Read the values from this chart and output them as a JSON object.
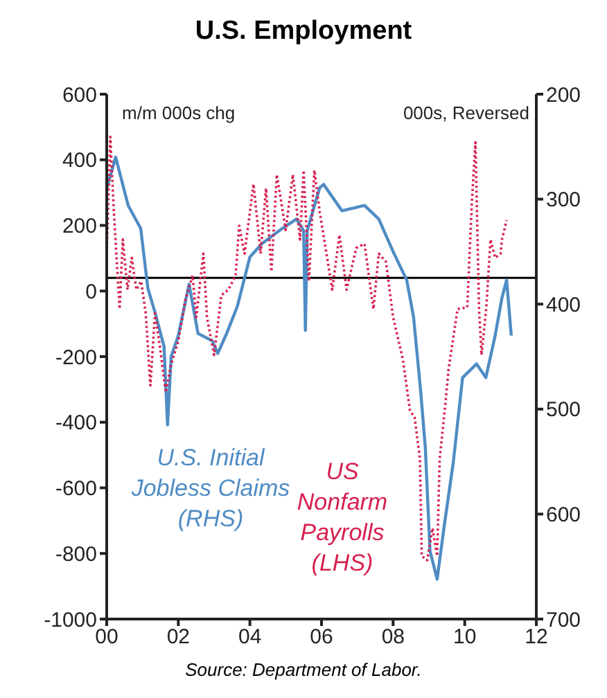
{
  "chart_data": {
    "type": "line",
    "title": "U.S. Employment",
    "ylabel": "m/m 000s chg",
    "y2label": "000s, Reversed",
    "annotations": [
      "Source: Department of Labor."
    ],
    "xlim": [
      2000,
      2012
    ],
    "xticks": [
      {
        "value": 2000,
        "label": "00"
      },
      {
        "value": 2002,
        "label": "02"
      },
      {
        "value": 2004,
        "label": "04"
      },
      {
        "value": 2006,
        "label": "06"
      },
      {
        "value": 2008,
        "label": "08"
      },
      {
        "value": 2010,
        "label": "10"
      },
      {
        "value": 2012,
        "label": "12"
      }
    ],
    "ylim": [
      -1000,
      600
    ],
    "yticks": [
      -1000,
      -800,
      -600,
      -400,
      -200,
      0,
      200,
      400,
      600
    ],
    "y2lim": [
      700,
      200
    ],
    "y2ticks": [
      200,
      300,
      400,
      500,
      600,
      700
    ],
    "ref_lines": [
      {
        "axis": "y2",
        "value": 375,
        "color": "#000000"
      }
    ],
    "grid": false,
    "legend": false,
    "series": [
      {
        "name": "U.S. Initial Jobless Claims (RHS)",
        "color": "#4f8cc4",
        "axis": "y2",
        "line_style": "solid",
        "x": [
          2000.0,
          2000.25,
          2000.6,
          2000.95,
          2001.15,
          2001.35,
          2001.6,
          2001.7,
          2001.8,
          2002.0,
          2002.3,
          2002.55,
          2002.95,
          2003.1,
          2003.35,
          2003.65,
          2004.0,
          2004.35,
          2004.9,
          2005.3,
          2005.5,
          2005.55,
          2005.6,
          2005.95,
          2006.06,
          2006.57,
          2007.2,
          2007.6,
          2008.0,
          2008.38,
          2008.57,
          2008.77,
          2008.9,
          2009.03,
          2009.23,
          2009.42,
          2009.68,
          2009.94,
          2010.33,
          2010.59,
          2010.85,
          2011.04,
          2011.17,
          2011.3
        ],
        "values": [
          290,
          260,
          306,
          328,
          385,
          408,
          440,
          515,
          450,
          430,
          381,
          428,
          435,
          447,
          428,
          402,
          355,
          342,
          328,
          319,
          330,
          425,
          330,
          289,
          286,
          311,
          306,
          319,
          350,
          377,
          412,
          483,
          537,
          635,
          662,
          613,
          551,
          470,
          457,
          470,
          430,
          394,
          377,
          430
        ]
      },
      {
        "name": "US Nonfarm Payrolls (LHS)",
        "color": "#d6204f",
        "line_style": "dotted",
        "x": [
          2000.0,
          2000.1,
          2000.2,
          2000.36,
          2000.45,
          2000.58,
          2000.7,
          2000.83,
          2000.96,
          2001.09,
          2001.22,
          2001.35,
          2001.48,
          2001.65,
          2001.8,
          2002.0,
          2002.2,
          2002.4,
          2002.5,
          2002.7,
          2002.8,
          2003.0,
          2003.2,
          2003.4,
          2003.6,
          2003.7,
          2003.85,
          2004.1,
          2004.3,
          2004.45,
          2004.6,
          2004.75,
          2005.0,
          2005.2,
          2005.4,
          2005.5,
          2005.65,
          2005.8,
          2005.95,
          2006.3,
          2006.5,
          2006.7,
          2006.97,
          2007.2,
          2007.45,
          2007.6,
          2007.8,
          2008.0,
          2008.27,
          2008.47,
          2008.6,
          2008.75,
          2008.8,
          2008.95,
          2009.1,
          2009.23,
          2009.3,
          2009.45,
          2009.55,
          2009.8,
          2010.07,
          2010.2,
          2010.3,
          2010.4,
          2010.47,
          2010.6,
          2010.72,
          2010.85,
          2011.0,
          2011.04,
          2011.17
        ],
        "values": [
          114,
          470,
          241,
          -55,
          157,
          4,
          101,
          4,
          30,
          -68,
          -288,
          -68,
          -165,
          -309,
          -224,
          -152,
          -25,
          47,
          -80,
          114,
          -80,
          -195,
          -13,
          4,
          47,
          199,
          114,
          326,
          114,
          313,
          59,
          355,
          186,
          355,
          157,
          368,
          30,
          368,
          241,
          4,
          171,
          4,
          131,
          144,
          -55,
          114,
          89,
          -80,
          -207,
          -364,
          -385,
          -512,
          -808,
          -821,
          -723,
          -808,
          -512,
          -355,
          -237,
          -55,
          -50,
          271,
          453,
          -55,
          -195,
          -55,
          157,
          101,
          114,
          157,
          216
        ]
      }
    ]
  }
}
